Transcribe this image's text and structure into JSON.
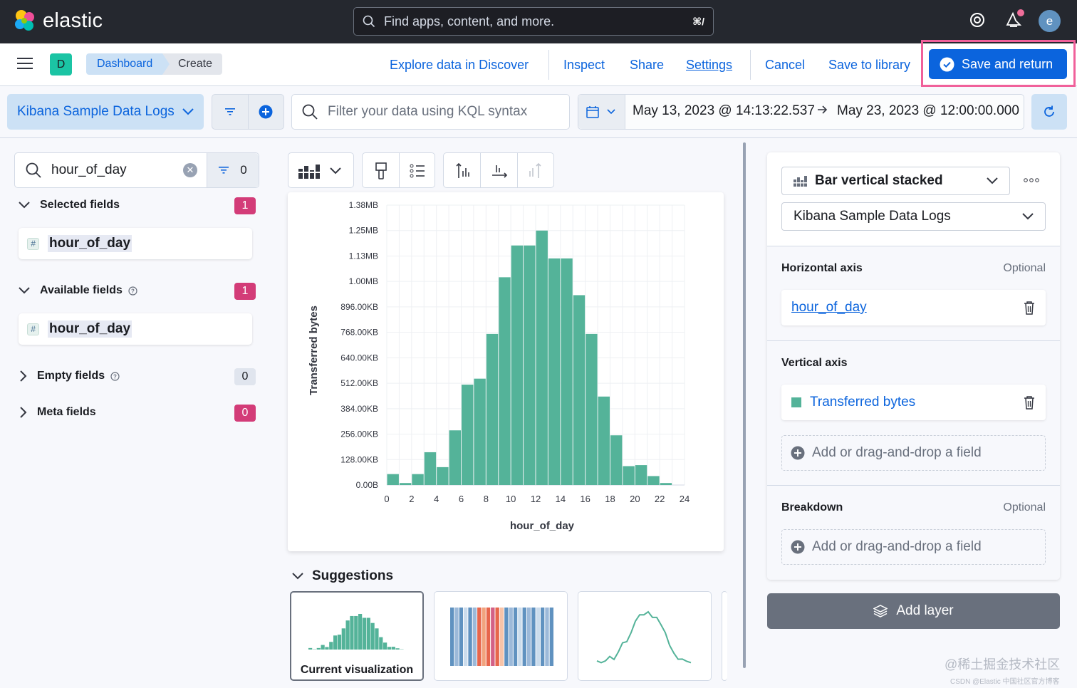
{
  "app": {
    "name": "elastic",
    "search_placeholder": "Find apps, content, and more.",
    "search_shortcut": "⌘/",
    "avatar_letter": "e",
    "accent": "#0b64dd"
  },
  "header": {
    "space_letter": "D",
    "breadcrumbs": [
      "Dashboard",
      "Create"
    ],
    "links": {
      "explore": "Explore data in Discover",
      "inspect": "Inspect",
      "share": "Share",
      "settings": "Settings",
      "cancel": "Cancel",
      "save_library": "Save to library"
    },
    "save_return": "Save and return"
  },
  "query": {
    "data_view": "Kibana Sample Data Logs",
    "kql_placeholder": "Filter your data using KQL syntax",
    "date_start": "May 13, 2023 @ 14:13:22.537",
    "date_end": "May 23, 2023 @ 12:00:00.000"
  },
  "fields": {
    "search_value": "hour_of_day",
    "filter_count": "0",
    "groups": {
      "selected": {
        "label": "Selected fields",
        "count": "1",
        "items": [
          "hour_of_day"
        ]
      },
      "available": {
        "label": "Available fields",
        "count": "1",
        "items": [
          "hour_of_day"
        ]
      },
      "empty": {
        "label": "Empty fields",
        "count": "0"
      },
      "meta": {
        "label": "Meta fields",
        "count": "0"
      }
    },
    "field_type_glyph": "#"
  },
  "chart_data": {
    "type": "bar",
    "xlabel": "hour_of_day",
    "ylabel": "Transferred bytes",
    "xlim": [
      0,
      24
    ],
    "x_ticks": [
      "0",
      "2",
      "4",
      "6",
      "8",
      "10",
      "12",
      "14",
      "16",
      "18",
      "20",
      "22",
      "24"
    ],
    "y_ticks": [
      "0.00B",
      "128.00KB",
      "256.00KB",
      "384.00KB",
      "512.00KB",
      "640.00KB",
      "768.00KB",
      "896.00KB",
      "1.00MB",
      "1.13MB",
      "1.25MB",
      "1.38MB"
    ],
    "y_unit_kb": 128,
    "ylim_kb": [
      0,
      1408
    ],
    "bar_width": 1,
    "color": "#54b399",
    "grid": true,
    "series": [
      {
        "x": [
          0,
          1,
          2,
          3,
          4,
          5,
          6,
          7,
          8,
          9,
          10,
          11,
          12,
          13,
          14,
          15,
          16,
          17,
          18,
          19,
          20,
          21,
          22
        ],
        "values_kb": [
          55,
          10,
          55,
          165,
          90,
          275,
          505,
          535,
          760,
          1045,
          1205,
          1205,
          1280,
          1140,
          1140,
          955,
          760,
          445,
          250,
          95,
          100,
          45,
          10
        ]
      }
    ]
  },
  "workspace": {
    "suggestions_title": "Suggestions",
    "current_viz_label": "Current visualization"
  },
  "config": {
    "chart_type": "Bar vertical stacked",
    "data_view": "Kibana Sample Data Logs",
    "horizontal": {
      "title": "Horizontal axis",
      "optional": "Optional",
      "field": "hour_of_day"
    },
    "vertical": {
      "title": "Vertical axis",
      "field": "Transferred bytes",
      "add": "Add or drag-and-drop a field"
    },
    "breakdown": {
      "title": "Breakdown",
      "optional": "Optional",
      "add": "Add or drag-and-drop a field"
    },
    "add_layer": "Add layer"
  },
  "watermark": {
    "line1": "@稀土掘金技术社区",
    "line2": "CSDN @Elastic 中国社区官方博客"
  }
}
